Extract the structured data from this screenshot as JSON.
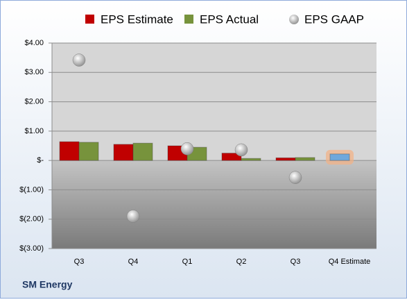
{
  "chart_data": {
    "type": "bar",
    "title": "SM Energy",
    "categories": [
      "Q3",
      "Q4",
      "Q1",
      "Q2",
      "Q3",
      "Q4 Estimate"
    ],
    "series": [
      {
        "name": "EPS Estimate",
        "type": "bar",
        "color": "#c00000",
        "values": [
          0.64,
          0.55,
          0.5,
          0.25,
          0.09,
          0.22
        ],
        "colors": [
          "#c00000",
          "#c00000",
          "#c00000",
          "#c00000",
          "#c00000",
          "#6fa8dc"
        ]
      },
      {
        "name": "EPS Actual",
        "type": "bar",
        "color": "#77933c",
        "values": [
          0.62,
          0.59,
          0.45,
          0.07,
          0.1,
          null
        ]
      },
      {
        "name": "EPS GAAP",
        "type": "scatter",
        "color": "#a6a6a6",
        "values": [
          3.42,
          -1.9,
          0.4,
          0.36,
          -0.58,
          null
        ]
      }
    ],
    "ylim": [
      -3,
      4
    ],
    "yticks": [
      {
        "value": 4,
        "label": "$4.00"
      },
      {
        "value": 3,
        "label": "$3.00"
      },
      {
        "value": 2,
        "label": "$2.00"
      },
      {
        "value": 1,
        "label": "$1.00"
      },
      {
        "value": 0,
        "label": "$-"
      },
      {
        "value": -1,
        "label": "$(1.00)"
      },
      {
        "value": -2,
        "label": "$(2.00)"
      },
      {
        "value": -3,
        "label": "$(3.00)"
      }
    ],
    "grid": true,
    "legend": "top"
  }
}
